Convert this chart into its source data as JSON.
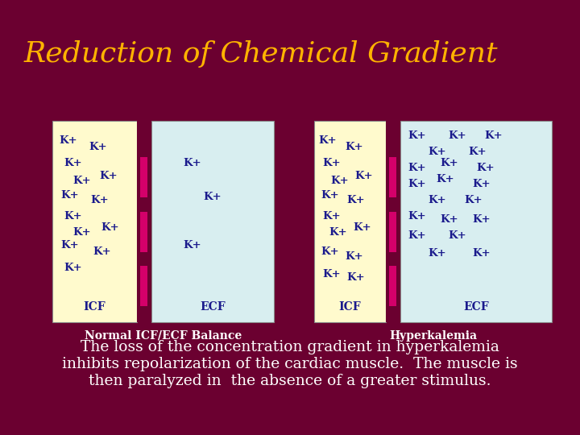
{
  "title": "Reduction of Chemical Gradient",
  "title_color": "#FFB300",
  "title_fontsize": 26,
  "bg_color": "#6B0030",
  "icf_color": "#FFFACD",
  "ecf_color": "#D8EEF0",
  "membrane_color": "#D4006A",
  "label_color": "#1A1A8C",
  "sublabel_color": "#FFFFFF",
  "caption_color": "#FFFFFF",
  "caption_fontsize": 13.5,
  "normal_label": "Normal ICF/ECF Balance",
  "hyper_label": "Hyperkalemia",
  "caption": "The loss of the concentration gradient in hyperkalemia\ninhibits repolarization of the cardiac muscle.  The muscle is\nthen paralyzed in  the absence of a greater stimulus."
}
